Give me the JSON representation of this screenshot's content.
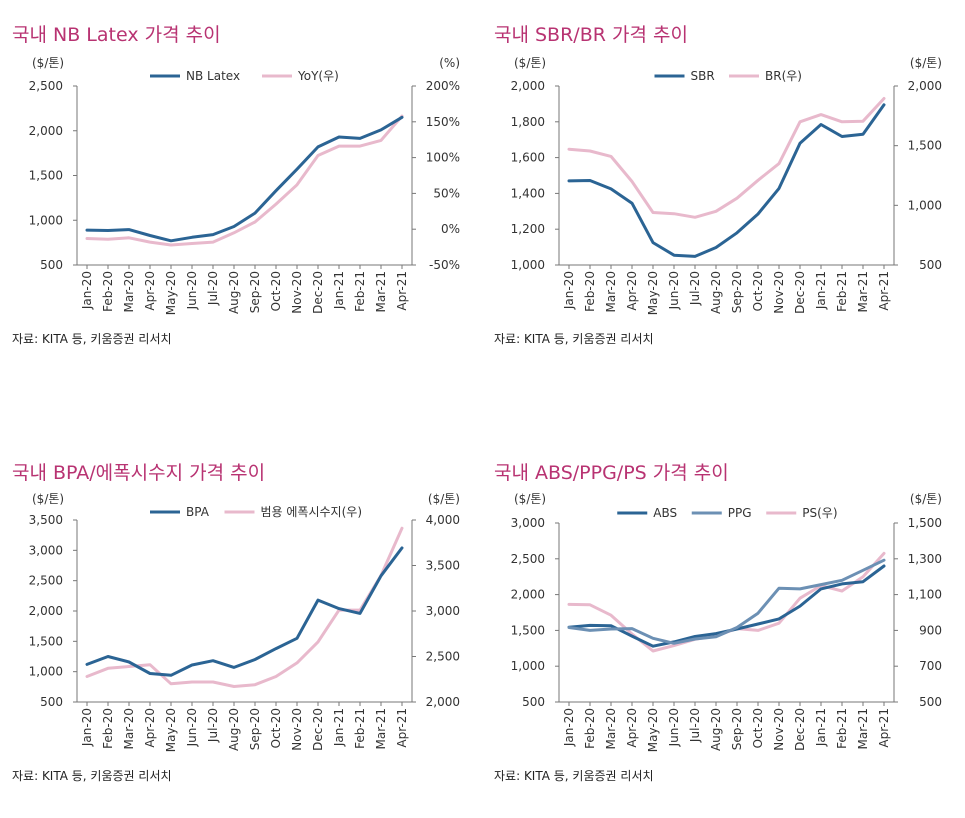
{
  "months": [
    "Jan-20",
    "Feb-20",
    "Mar-20",
    "Apr-20",
    "May-20",
    "Jun-20",
    "Jul-20",
    "Aug-20",
    "Sep-20",
    "Oct-20",
    "Nov-20",
    "Dec-20",
    "Jan-21",
    "Feb-21",
    "Mar-21",
    "Apr-21"
  ],
  "colors": {
    "title": "#b83372",
    "primary": "#2b6494",
    "pink": "#e8b9cc",
    "steel": "#6c90b4",
    "axis": "#777777"
  },
  "chart_data": [
    {
      "type": "line",
      "title": "국내 NB Latex 가격 추이",
      "source": "자료: KITA 등, 키움증권 리서치",
      "left_unit": "($/톤)",
      "right_unit": "(%)",
      "ylim": [
        500,
        2500
      ],
      "y_ticks": [
        "2,500",
        "2,000",
        "1,500",
        "1,000",
        "500"
      ],
      "y2lim": [
        -50,
        200
      ],
      "y2_ticks": [
        "200%",
        "150%",
        "100%",
        "50%",
        "0%",
        "-50%"
      ],
      "series": [
        {
          "name": "NB Latex",
          "axis": "left",
          "color": "#2b6494",
          "values": [
            890,
            885,
            895,
            830,
            770,
            810,
            840,
            930,
            1080,
            1330,
            1570,
            1820,
            1930,
            1915,
            2010,
            2150
          ]
        },
        {
          "name": "YoY(우)",
          "axis": "right",
          "color": "#e8b9cc",
          "values": [
            -13,
            -14,
            -12,
            -18,
            -22,
            -20,
            -18,
            -5,
            10,
            35,
            62,
            103,
            116,
            116,
            124,
            158
          ]
        }
      ]
    },
    {
      "type": "line",
      "title": "국내 SBR/BR 가격 추이",
      "source": "자료: KITA 등, 키움증권 리서치",
      "left_unit": "($/톤)",
      "right_unit": "($/톤)",
      "ylim": [
        1000,
        2000
      ],
      "y_ticks": [
        "2,000",
        "1,800",
        "1,600",
        "1,400",
        "1,200",
        "1,000"
      ],
      "y2lim": [
        500,
        2000
      ],
      "y2_ticks": [
        "2,000",
        "1,500",
        "1,000",
        "500"
      ],
      "series": [
        {
          "name": "SBR",
          "axis": "left",
          "color": "#2b6494",
          "values": [
            1470,
            1472,
            1425,
            1345,
            1125,
            1055,
            1048,
            1098,
            1180,
            1285,
            1428,
            1680,
            1785,
            1718,
            1730,
            1895
          ]
        },
        {
          "name": "BR(우)",
          "axis": "right",
          "color": "#e8b9cc",
          "values": [
            1470,
            1455,
            1410,
            1200,
            940,
            930,
            900,
            950,
            1060,
            1210,
            1350,
            1700,
            1760,
            1700,
            1705,
            1895
          ]
        }
      ]
    },
    {
      "type": "line",
      "title": "국내 BPA/에폭시수지 가격 추이",
      "source": "자료: KITA 등, 키움증권 리서치",
      "left_unit": "($/톤)",
      "right_unit": "($/톤)",
      "ylim": [
        500,
        3500
      ],
      "y_ticks": [
        "3,500",
        "3,000",
        "2,500",
        "2,000",
        "1,500",
        "1,000",
        "500"
      ],
      "y2lim": [
        2000,
        4000
      ],
      "y2_ticks": [
        "4,000",
        "3,500",
        "3,000",
        "2,500",
        "2,000"
      ],
      "series": [
        {
          "name": "BPA",
          "axis": "left",
          "color": "#2b6494",
          "values": [
            1120,
            1250,
            1160,
            970,
            940,
            1110,
            1180,
            1070,
            1200,
            1380,
            1550,
            2180,
            2040,
            1960,
            2580,
            3040
          ]
        },
        {
          "name": "범용 에폭시수지(우)",
          "axis": "right",
          "color": "#e8b9cc",
          "values": [
            2280,
            2370,
            2390,
            2410,
            2200,
            2220,
            2220,
            2170,
            2190,
            2280,
            2430,
            2660,
            3010,
            3010,
            3390,
            3910
          ]
        }
      ]
    },
    {
      "type": "line",
      "title": "국내 ABS/PPG/PS 가격 추이",
      "source": "자료: KITA 등, 키움증권 리서치",
      "left_unit": "($/톤)",
      "right_unit": "($/톤)",
      "ylim": [
        500,
        3000
      ],
      "y_ticks": [
        "3,000",
        "2,500",
        "2,000",
        "1,500",
        "1,000",
        "500"
      ],
      "y2lim": [
        500,
        1500
      ],
      "y2_ticks": [
        "1,500",
        "1,300",
        "1,100",
        "900",
        "700",
        "500"
      ],
      "series": [
        {
          "name": "ABS",
          "axis": "left",
          "color": "#2b6494",
          "values": [
            1545,
            1570,
            1565,
            1420,
            1280,
            1340,
            1415,
            1455,
            1520,
            1590,
            1660,
            1840,
            2080,
            2150,
            2180,
            2400
          ]
        },
        {
          "name": "PPG",
          "axis": "left",
          "color": "#6c90b4",
          "values": [
            1540,
            1500,
            1520,
            1525,
            1390,
            1320,
            1380,
            1410,
            1540,
            1740,
            2090,
            2080,
            2140,
            2200,
            2340,
            2480
          ]
        },
        {
          "name": "PS(우)",
          "axis": "right",
          "color": "#e8b9cc",
          "values": [
            1045,
            1043,
            985,
            880,
            785,
            815,
            850,
            870,
            910,
            900,
            940,
            1080,
            1150,
            1120,
            1200,
            1330
          ]
        }
      ]
    }
  ]
}
